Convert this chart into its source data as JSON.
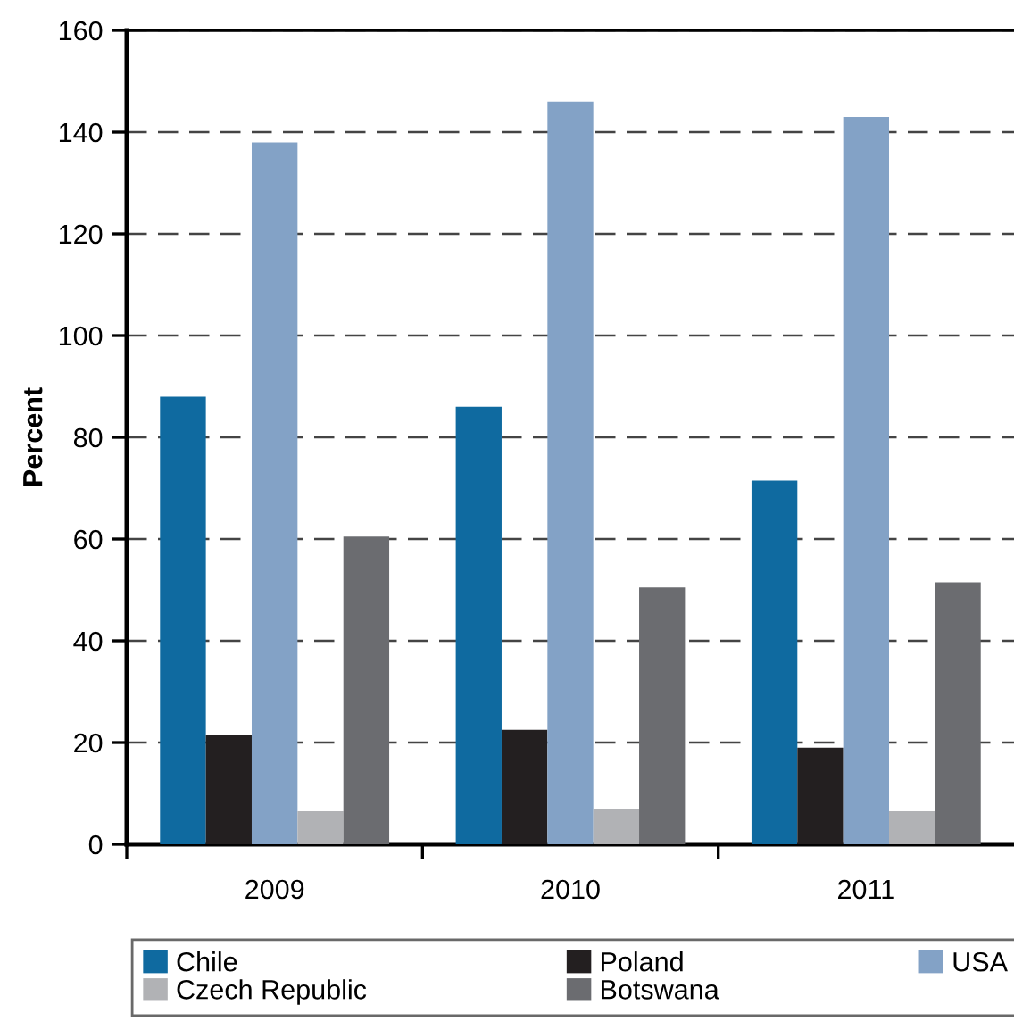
{
  "chart_data": {
    "type": "bar",
    "ylabel": "Percent",
    "categories": [
      "2009",
      "2010",
      "2011"
    ],
    "series": [
      {
        "name": "Chile",
        "color": "#0f6aa0",
        "values": [
          88,
          86,
          71.5
        ]
      },
      {
        "name": "Poland",
        "color": "#231f20",
        "values": [
          21.5,
          22.5,
          19
        ]
      },
      {
        "name": "USA",
        "color": "#83a2c6",
        "values": [
          138,
          146,
          143
        ]
      },
      {
        "name": "Czech Republic",
        "color": "#b1b2b5",
        "values": [
          6.5,
          7,
          6.5
        ]
      },
      {
        "name": "Botswana",
        "color": "#6b6c70",
        "values": [
          60.5,
          50.5,
          51.5
        ]
      }
    ],
    "ylim": [
      0,
      160
    ],
    "yticks": [
      0,
      20,
      40,
      60,
      80,
      100,
      120,
      140,
      160
    ],
    "grid": "y",
    "legend": "bottom"
  }
}
